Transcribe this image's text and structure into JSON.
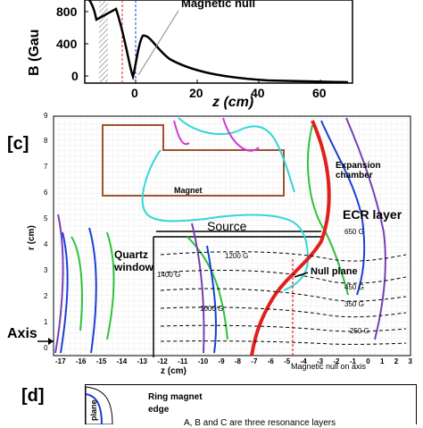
{
  "panel_top": {
    "ylabel": "B (Gau",
    "xlabel": "z (cm)",
    "annotation": "Magnetic null",
    "y_ticks": [
      "800",
      "400",
      "0"
    ],
    "x_ticks": [
      "0",
      "20",
      "40",
      "60"
    ]
  },
  "panel_c": {
    "tag": "[c]",
    "ylabel": "r (cm)",
    "xlabel": "z (cm)",
    "y_ticks": [
      "9",
      "8",
      "7",
      "6",
      "5",
      "4",
      "3",
      "2",
      "1",
      "0"
    ],
    "x_ticks": [
      "-17",
      "-16",
      "-15",
      "-14",
      "-13",
      "-12",
      "-11",
      "-10",
      "-9",
      "-8",
      "-7",
      "-6",
      "-5",
      "-4",
      "-3",
      "-2",
      "-1",
      "0",
      "1",
      "2",
      "3"
    ],
    "magnet_label": "Magnet",
    "source_label": "Source",
    "quartz_label": "Quartz\nwindow",
    "expansion_label": "Expansion\nchamber",
    "ecr_label": "ECR layer",
    "null_plane_label": "Null plane",
    "axis_label": "Axis",
    "null_axis_label": "Magnetic null on axis",
    "contours": [
      "650 G",
      "1200 G",
      "1400 G",
      "1000 G",
      "450 G",
      "350 G",
      "250 G"
    ]
  },
  "panel_d": {
    "tag": "[d]",
    "ring_label": "Ring magnet",
    "edge_label": "edge",
    "resonance_text": "A, B and C are three resonance layers",
    "side_text": "plane"
  },
  "colors": {
    "ecr": "#e0201c",
    "cyan": "#33d6d6",
    "green": "#2fc23a",
    "purple": "#7a3db8",
    "blue": "#1a3fd6",
    "magnet": "#a0522d",
    "magenta": "#d23bd2"
  }
}
